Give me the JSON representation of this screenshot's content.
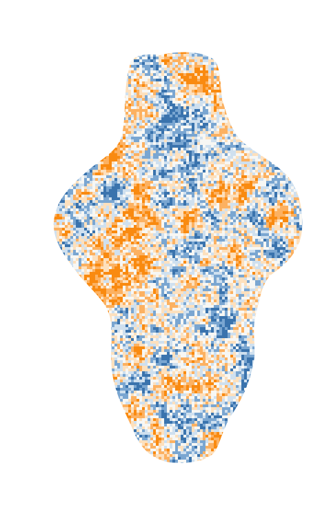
{
  "figure": {
    "kind": "heatmap-noise-blob",
    "colors": {
      "background": "#ffffff",
      "negative_strong": "#3a73ad",
      "negative_mid": "#7aa6d1",
      "negative_light": "#cfe0ef",
      "neutral": "#f7f7f4",
      "positive_light": "#fde0bd",
      "positive_mid": "#fcb161",
      "positive_strong": "#f98a10"
    }
  }
}
